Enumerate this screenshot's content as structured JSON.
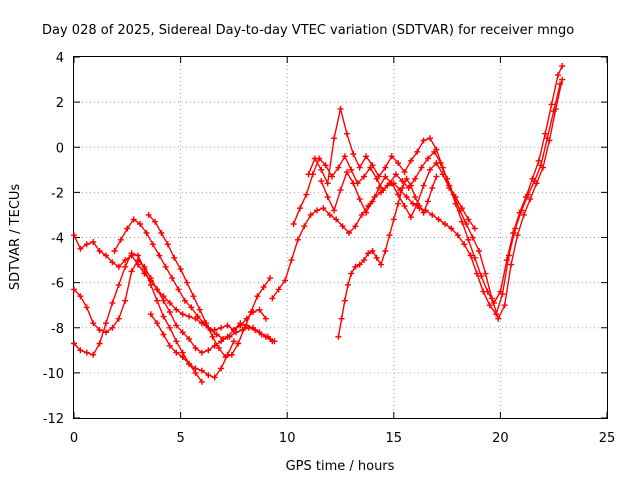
{
  "chart_data": {
    "type": "scatter",
    "title": "Day 028 of 2025, Sidereal Day-to-day VTEC variation (SDTVAR) for receiver mngo",
    "xlabel": "GPS time / hours",
    "ylabel": "SDTVAR / TECUs",
    "xlim": [
      0,
      25
    ],
    "ylim": [
      -12,
      4
    ],
    "xticks": [
      0,
      5,
      10,
      15,
      20,
      25
    ],
    "yticks": [
      -12,
      -10,
      -8,
      -6,
      -4,
      -2,
      0,
      2,
      4
    ],
    "grid": true,
    "marker": "plus",
    "color": "#ff0000",
    "series": [
      {
        "x": [
          0.0,
          0.3,
          0.6,
          0.9,
          1.2,
          1.5,
          1.8,
          2.1,
          2.4,
          2.7,
          3.0,
          3.3,
          3.6,
          3.9,
          4.2,
          4.5,
          4.8,
          5.1,
          5.4,
          5.7,
          6.0,
          6.3,
          6.6,
          6.9,
          7.2,
          7.5,
          7.8,
          8.1,
          8.4,
          8.7,
          9.0,
          9.3
        ],
        "y": [
          -3.9,
          -4.5,
          -4.3,
          -4.2,
          -4.6,
          -4.8,
          -5.1,
          -5.3,
          -5.0,
          -4.8,
          -5.2,
          -5.6,
          -5.9,
          -6.3,
          -6.6,
          -6.9,
          -7.2,
          -7.4,
          -7.5,
          -7.6,
          -7.8,
          -8.0,
          -8.1,
          -8.0,
          -7.9,
          -8.1,
          -7.8,
          -7.9,
          -8.0,
          -8.2,
          -8.4,
          -8.6
        ]
      },
      {
        "x": [
          0.0,
          0.3,
          0.6,
          0.9,
          1.2,
          1.5,
          1.8,
          2.1,
          2.4,
          2.7,
          3.0,
          3.3,
          3.6,
          3.9,
          4.2,
          4.5,
          4.8,
          5.1,
          5.4,
          5.7,
          6.0,
          6.3,
          6.6,
          6.9,
          7.2,
          7.5,
          7.8,
          8.1,
          8.4,
          8.7,
          9.0
        ],
        "y": [
          -6.3,
          -6.6,
          -7.1,
          -7.8,
          -8.1,
          -8.2,
          -8.0,
          -7.6,
          -6.8,
          -5.5,
          -5.0,
          -5.3,
          -5.8,
          -6.3,
          -6.8,
          -7.3,
          -7.9,
          -8.2,
          -8.5,
          -8.9,
          -9.1,
          -9.0,
          -8.8,
          -8.6,
          -8.4,
          -8.1,
          -7.9,
          -7.6,
          -7.3,
          -7.2,
          -7.6
        ]
      },
      {
        "x": [
          0.0,
          0.3,
          0.6,
          0.9,
          1.2,
          1.5,
          1.8,
          2.1,
          2.4,
          2.7,
          3.0,
          3.3,
          3.6,
          3.9,
          4.2,
          4.5,
          4.8,
          5.1,
          5.4,
          5.7,
          6.0
        ],
        "y": [
          -8.7,
          -9.0,
          -9.1,
          -9.2,
          -8.7,
          -7.8,
          -6.9,
          -6.1,
          -5.3,
          -4.7,
          -4.8,
          -5.4,
          -6.1,
          -6.8,
          -7.5,
          -8.0,
          -8.6,
          -9.1,
          -9.6,
          -10.0,
          -10.4
        ]
      },
      {
        "x": [
          1.9,
          2.2,
          2.5,
          2.8,
          3.1,
          3.4,
          3.7,
          4.0,
          4.3,
          4.6,
          4.9,
          5.2,
          5.5,
          5.8,
          6.1,
          6.4,
          6.7,
          7.0,
          7.3,
          7.6,
          7.9,
          8.2,
          8.5,
          8.8,
          9.1,
          9.4
        ],
        "y": [
          -4.6,
          -4.1,
          -3.6,
          -3.2,
          -3.4,
          -3.8,
          -4.3,
          -4.8,
          -5.3,
          -5.8,
          -6.3,
          -6.8,
          -7.1,
          -7.5,
          -7.8,
          -8.1,
          -8.3,
          -8.5,
          -8.4,
          -8.2,
          -8.1,
          -8.0,
          -8.1,
          -8.3,
          -8.4,
          -8.6
        ]
      },
      {
        "x": [
          3.5,
          3.8,
          4.1,
          4.4,
          4.7,
          5.0,
          5.3,
          5.6,
          5.9,
          6.2,
          6.5,
          6.8,
          7.1,
          7.4,
          7.7,
          8.0,
          8.3,
          8.6,
          8.9,
          9.2
        ],
        "y": [
          -3.0,
          -3.3,
          -3.8,
          -4.3,
          -4.9,
          -5.4,
          -6.0,
          -6.6,
          -7.2,
          -7.8,
          -8.4,
          -8.9,
          -9.3,
          -9.2,
          -8.7,
          -8.0,
          -7.3,
          -6.6,
          -6.2,
          -5.8
        ]
      },
      {
        "x": [
          3.6,
          3.9,
          4.2,
          4.5,
          4.8,
          5.1,
          5.4,
          5.7,
          6.0,
          6.3,
          6.6,
          6.9,
          7.2,
          7.5
        ],
        "y": [
          -7.4,
          -7.8,
          -8.3,
          -8.8,
          -9.1,
          -9.3,
          -9.6,
          -9.8,
          -9.9,
          -10.1,
          -10.2,
          -9.8,
          -9.2,
          -8.6
        ]
      },
      {
        "x": [
          9.3,
          9.6,
          9.9,
          10.2,
          10.5,
          10.8,
          11.1,
          11.4,
          11.7,
          12.0,
          12.3,
          12.6,
          12.9,
          13.2,
          13.5,
          13.8,
          14.1,
          14.4,
          14.7,
          15.0,
          15.3,
          15.6,
          15.9,
          16.2,
          16.5,
          16.8,
          17.1,
          17.4,
          17.7,
          18.0,
          18.3,
          18.6,
          18.9,
          19.2,
          19.5,
          19.8,
          20.1,
          20.4,
          20.7,
          21.0,
          21.3,
          21.6,
          21.9,
          22.2,
          22.5,
          22.8
        ],
        "y": [
          -6.7,
          -6.3,
          -5.9,
          -5.0,
          -4.1,
          -3.5,
          -3.0,
          -2.8,
          -2.7,
          -3.0,
          -3.2,
          -3.5,
          -3.8,
          -3.5,
          -3.0,
          -2.6,
          -2.2,
          -2.0,
          -1.7,
          -1.6,
          -1.9,
          -2.2,
          -2.5,
          -2.7,
          -2.8,
          -3.0,
          -3.2,
          -3.4,
          -3.6,
          -3.9,
          -4.3,
          -4.8,
          -5.6,
          -6.4,
          -7.0,
          -7.4,
          -6.5,
          -4.8,
          -3.6,
          -2.8,
          -2.1,
          -1.5,
          -0.8,
          0.4,
          1.6,
          2.8
        ]
      },
      {
        "x": [
          10.3,
          10.6,
          10.9,
          11.2,
          11.5,
          11.8,
          12.1,
          12.4,
          12.7,
          13.0,
          13.3,
          13.6,
          13.9,
          14.2,
          14.5,
          14.8,
          15.1,
          15.4,
          15.7,
          16.0,
          16.3,
          16.6,
          16.9,
          17.2,
          17.5,
          17.8,
          18.1,
          18.4,
          18.7,
          19.0,
          19.3,
          19.6,
          19.9,
          20.2,
          20.5,
          20.8,
          21.1,
          21.4,
          21.7,
          22.0,
          22.3,
          22.6,
          22.9
        ],
        "y": [
          -3.4,
          -2.7,
          -2.1,
          -1.2,
          -0.5,
          -0.8,
          -1.3,
          -0.9,
          -0.4,
          -1.0,
          -1.6,
          -1.3,
          -0.9,
          -1.4,
          -1.9,
          -1.6,
          -1.2,
          -1.5,
          -1.8,
          -1.4,
          -0.9,
          -0.5,
          -0.2,
          -0.7,
          -1.4,
          -2.1,
          -2.8,
          -3.4,
          -4.0,
          -4.6,
          -5.6,
          -6.7,
          -7.6,
          -7.0,
          -5.2,
          -3.9,
          -3.0,
          -2.3,
          -1.6,
          -0.9,
          0.3,
          1.7,
          3.0
        ]
      },
      {
        "x": [
          11.0,
          11.3,
          11.6,
          11.9,
          12.2,
          12.5,
          12.8,
          13.1,
          13.4,
          13.7,
          14.0,
          14.3,
          14.6,
          14.9,
          15.2,
          15.5,
          15.8,
          16.1,
          16.4,
          16.7,
          17.0,
          17.3,
          17.6,
          17.9,
          18.2,
          18.5,
          18.8,
          19.1,
          19.4,
          19.7,
          20.0,
          20.3,
          20.6,
          20.9,
          21.2,
          21.5,
          21.8,
          22.1,
          22.4,
          22.7,
          22.9
        ],
        "y": [
          -1.2,
          -0.5,
          -1.0,
          -1.6,
          0.4,
          1.7,
          0.6,
          -0.3,
          -0.9,
          -0.4,
          -0.8,
          -1.3,
          -0.9,
          -0.4,
          -0.7,
          -1.1,
          -0.6,
          -0.2,
          0.3,
          0.4,
          -0.1,
          -0.9,
          -1.7,
          -2.5,
          -3.3,
          -4.1,
          -4.9,
          -5.7,
          -6.4,
          -6.9,
          -6.4,
          -5.0,
          -3.8,
          -2.9,
          -2.2,
          -1.4,
          -0.6,
          0.6,
          1.9,
          3.2,
          3.6
        ]
      },
      {
        "x": [
          11.6,
          11.9,
          12.2,
          12.5,
          12.8,
          13.1,
          13.4,
          13.7,
          14.0,
          14.3,
          14.6,
          14.9,
          15.2,
          15.5,
          15.8,
          16.1,
          16.4,
          16.7,
          17.0,
          17.3,
          17.6,
          17.9,
          18.2,
          18.5,
          18.8
        ],
        "y": [
          -1.5,
          -2.2,
          -2.8,
          -1.9,
          -1.1,
          -1.6,
          -2.3,
          -2.9,
          -2.4,
          -1.8,
          -1.3,
          -1.6,
          -2.1,
          -2.6,
          -3.1,
          -2.5,
          -1.7,
          -1.0,
          -0.7,
          -1.2,
          -1.8,
          -2.2,
          -2.7,
          -3.2,
          -3.6
        ]
      },
      {
        "x": [
          12.4,
          12.55,
          12.7,
          12.85,
          13.0,
          13.2,
          13.4,
          13.6,
          13.8,
          14.0,
          14.2,
          14.4,
          14.6,
          14.8,
          15.0,
          15.2,
          15.4,
          15.6,
          15.8,
          16.0,
          16.2,
          16.4,
          16.6,
          16.8,
          17.0
        ],
        "y": [
          -8.4,
          -7.6,
          -6.8,
          -6.1,
          -5.6,
          -5.3,
          -5.2,
          -5.0,
          -4.7,
          -4.6,
          -4.9,
          -5.2,
          -4.6,
          -3.9,
          -3.2,
          -2.5,
          -1.8,
          -1.4,
          -1.7,
          -2.2,
          -2.6,
          -2.9,
          -2.4,
          -1.8,
          -1.3
        ]
      }
    ]
  }
}
